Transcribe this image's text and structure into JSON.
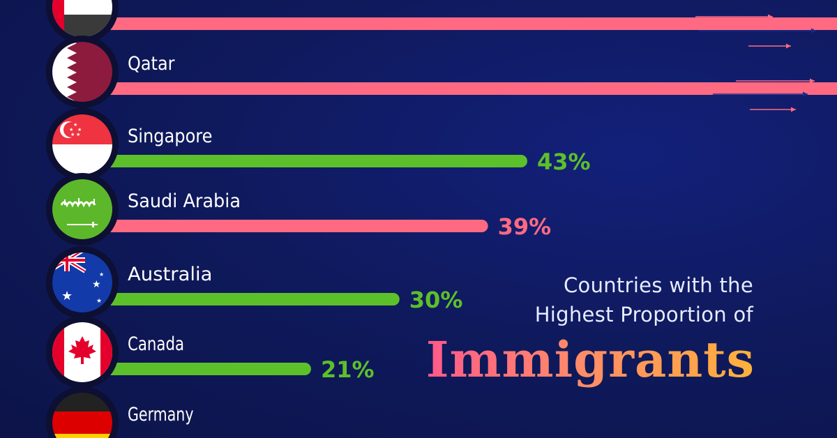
{
  "title": {
    "line1": "Countries with the",
    "line2": "Highest Proportion of",
    "headline": "Immigrants"
  },
  "colors": {
    "pink": "#ff6a82",
    "green": "#5cc02a",
    "arrow": "#ff6a82",
    "text": "#ffffff",
    "badge_ring": "#0d0f33"
  },
  "chart_data": {
    "type": "bar",
    "orientation": "horizontal",
    "categories": [
      "",
      "Qatar",
      "Singapore",
      "Saudi Arabia",
      "Australia",
      "Canada",
      "Germany"
    ],
    "values": [
      null,
      null,
      43,
      39,
      30,
      21,
      null
    ],
    "value_labels": [
      "",
      "",
      "43%",
      "39%",
      "30%",
      "21%",
      ""
    ],
    "bar_colors": [
      "pink",
      "pink",
      "green",
      "pink",
      "green",
      "green",
      "pink"
    ],
    "flags": [
      "uae-flag-icon",
      "qatar-flag-icon",
      "singapore-flag-icon",
      "saudi-arabia-flag-icon",
      "australia-flag-icon",
      "canada-flag-icon",
      "germany-flag-icon"
    ],
    "truncated": [
      true,
      true,
      false,
      false,
      false,
      false,
      false
    ],
    "axis_max_percent": 43
  }
}
